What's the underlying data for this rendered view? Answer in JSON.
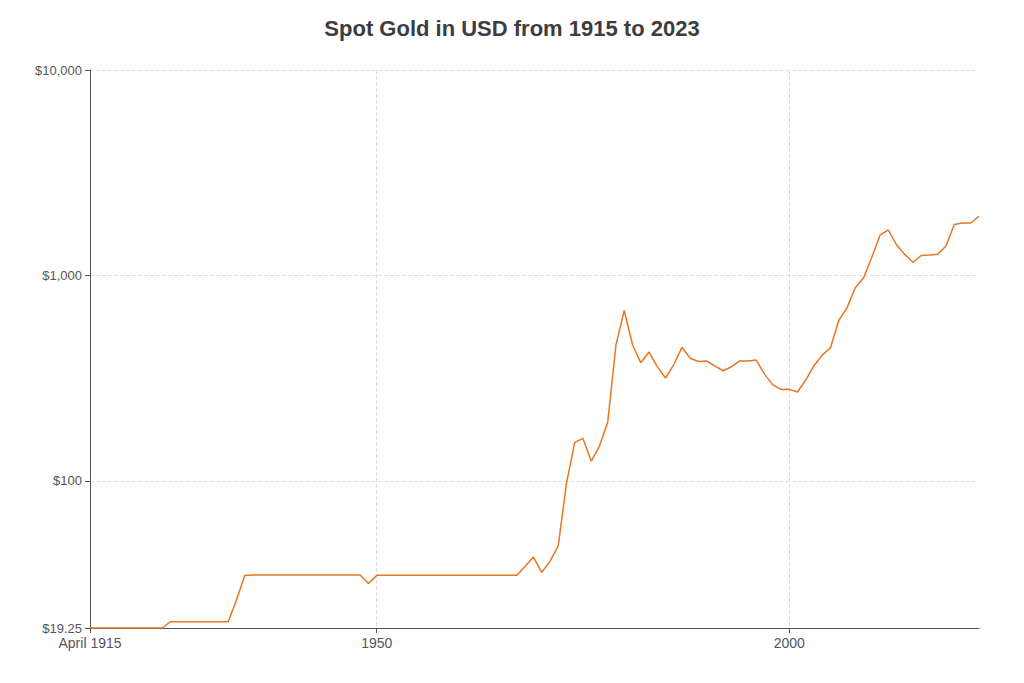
{
  "chart_data": {
    "type": "line",
    "title": "Spot Gold in USD from 1915 to 2023",
    "x": [
      1915.25,
      1916,
      1917,
      1918,
      1919,
      1920,
      1921,
      1922,
      1923,
      1924,
      1925,
      1926,
      1927,
      1928,
      1929,
      1930,
      1931,
      1932,
      1933,
      1934,
      1935,
      1936,
      1937,
      1938,
      1939,
      1940,
      1941,
      1942,
      1943,
      1944,
      1945,
      1946,
      1947,
      1948,
      1949,
      1950,
      1951,
      1952,
      1953,
      1954,
      1955,
      1956,
      1957,
      1958,
      1959,
      1960,
      1961,
      1962,
      1963,
      1964,
      1965,
      1966,
      1967,
      1968,
      1969,
      1970,
      1971,
      1972,
      1973,
      1974,
      1975,
      1976,
      1977,
      1978,
      1979,
      1980,
      1981,
      1982,
      1983,
      1984,
      1985,
      1986,
      1987,
      1988,
      1989,
      1990,
      1991,
      1992,
      1993,
      1994,
      1995,
      1996,
      1997,
      1998,
      1999,
      2000,
      2001,
      2002,
      2003,
      2004,
      2005,
      2006,
      2007,
      2008,
      2009,
      2010,
      2011,
      2012,
      2013,
      2014,
      2015,
      2016,
      2017,
      2018,
      2019,
      2020,
      2021,
      2022,
      2023
    ],
    "values": [
      19.25,
      19.25,
      19.25,
      19.25,
      19.25,
      19.25,
      19.25,
      19.25,
      19.25,
      19.25,
      20.64,
      20.64,
      20.64,
      20.64,
      20.64,
      20.64,
      20.64,
      20.64,
      26.33,
      34.69,
      34.84,
      34.84,
      34.84,
      34.84,
      34.84,
      34.84,
      34.84,
      34.84,
      34.84,
      34.84,
      34.84,
      34.84,
      34.84,
      34.84,
      31.69,
      34.72,
      34.72,
      34.72,
      34.72,
      34.72,
      34.72,
      34.72,
      34.72,
      34.72,
      34.72,
      34.72,
      34.72,
      34.72,
      34.72,
      34.72,
      34.72,
      34.72,
      34.72,
      38.42,
      42.6,
      35.94,
      40.62,
      48.37,
      97.39,
      154.0,
      161.1,
      124.8,
      147.84,
      193.4,
      459.48,
      675.3,
      460.0,
      376.0,
      424.0,
      360.0,
      317.0,
      367.66,
      446.46,
      395.65,
      381.44,
      383.51,
      362.11,
      343.82,
      359.77,
      384.0,
      384.0,
      387.81,
      331.02,
      294.24,
      278.88,
      279.11,
      271.04,
      309.97,
      363.83,
      409.72,
      444.74,
      603.77,
      695.39,
      871.96,
      972.35,
      1224.53,
      1571.52,
      1668.86,
      1411.23,
      1266.4,
      1160.06,
      1250.74,
      1257.54,
      1268.49,
      1392.6,
      1769.64,
      1798.61,
      1800.23,
      1943.0
    ],
    "color": "#E87722",
    "log": "y",
    "xlim": [
      1915.25,
      2023
    ],
    "ylim": [
      19.25,
      10000
    ],
    "xticks": [
      {
        "value": 1915.25,
        "label": "April 1915"
      },
      1950,
      2000
    ],
    "yticks": [
      {
        "value": 19.25,
        "label": "$19.25"
      },
      {
        "value": 100,
        "label": "$100"
      },
      {
        "value": 1000,
        "label": "$1,000"
      },
      {
        "value": 10000,
        "label": "$10,000"
      }
    ],
    "grid": true
  }
}
